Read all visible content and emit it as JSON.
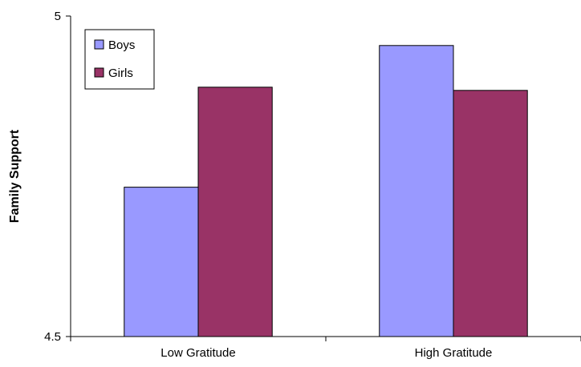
{
  "chart_data": {
    "type": "bar",
    "title": "",
    "xlabel": "",
    "ylabel": "Family Support",
    "ylim": [
      4.5,
      5
    ],
    "y_ticks": [
      {
        "value": 4.5,
        "label": "4.5"
      },
      {
        "value": 5,
        "label": "5"
      }
    ],
    "categories": [
      "Low Gratitude",
      "High Gratitude"
    ],
    "series": [
      {
        "name": "Boys",
        "color": "#9999ff",
        "values": [
          4.733,
          4.954
        ]
      },
      {
        "name": "Girls",
        "color": "#993366",
        "values": [
          4.889,
          4.884
        ]
      }
    ],
    "grid": false,
    "legend_position": "top-left",
    "bar_outline_color": "#000000"
  }
}
